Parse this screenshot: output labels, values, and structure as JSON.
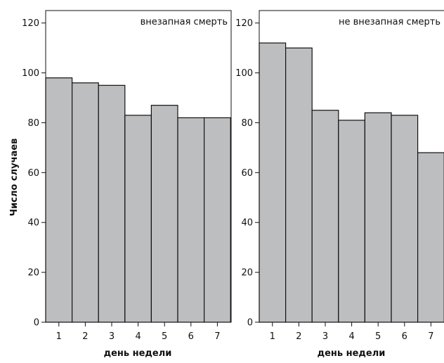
{
  "chart_data": {
    "type": "bar",
    "ylabel": "Число случаев",
    "bar_color": "#bdbec0",
    "edge_color": "#111111",
    "panels": [
      {
        "title": "внезапная смерть",
        "xlabel": "день недели",
        "categories": [
          "1",
          "2",
          "3",
          "4",
          "5",
          "6",
          "7"
        ],
        "values": [
          98,
          96,
          95,
          83,
          87,
          82,
          82
        ],
        "ylim": [
          0,
          125
        ],
        "yticks": [
          0,
          20,
          40,
          60,
          80,
          100,
          120
        ]
      },
      {
        "title": "не внезапная смерть",
        "xlabel": "день недели",
        "categories": [
          "1",
          "2",
          "3",
          "4",
          "5",
          "6",
          "7"
        ],
        "values": [
          112,
          110,
          85,
          81,
          84,
          83,
          68
        ],
        "ylim": [
          0,
          125
        ],
        "yticks": [
          0,
          20,
          40,
          60,
          80,
          100,
          120
        ]
      }
    ]
  }
}
